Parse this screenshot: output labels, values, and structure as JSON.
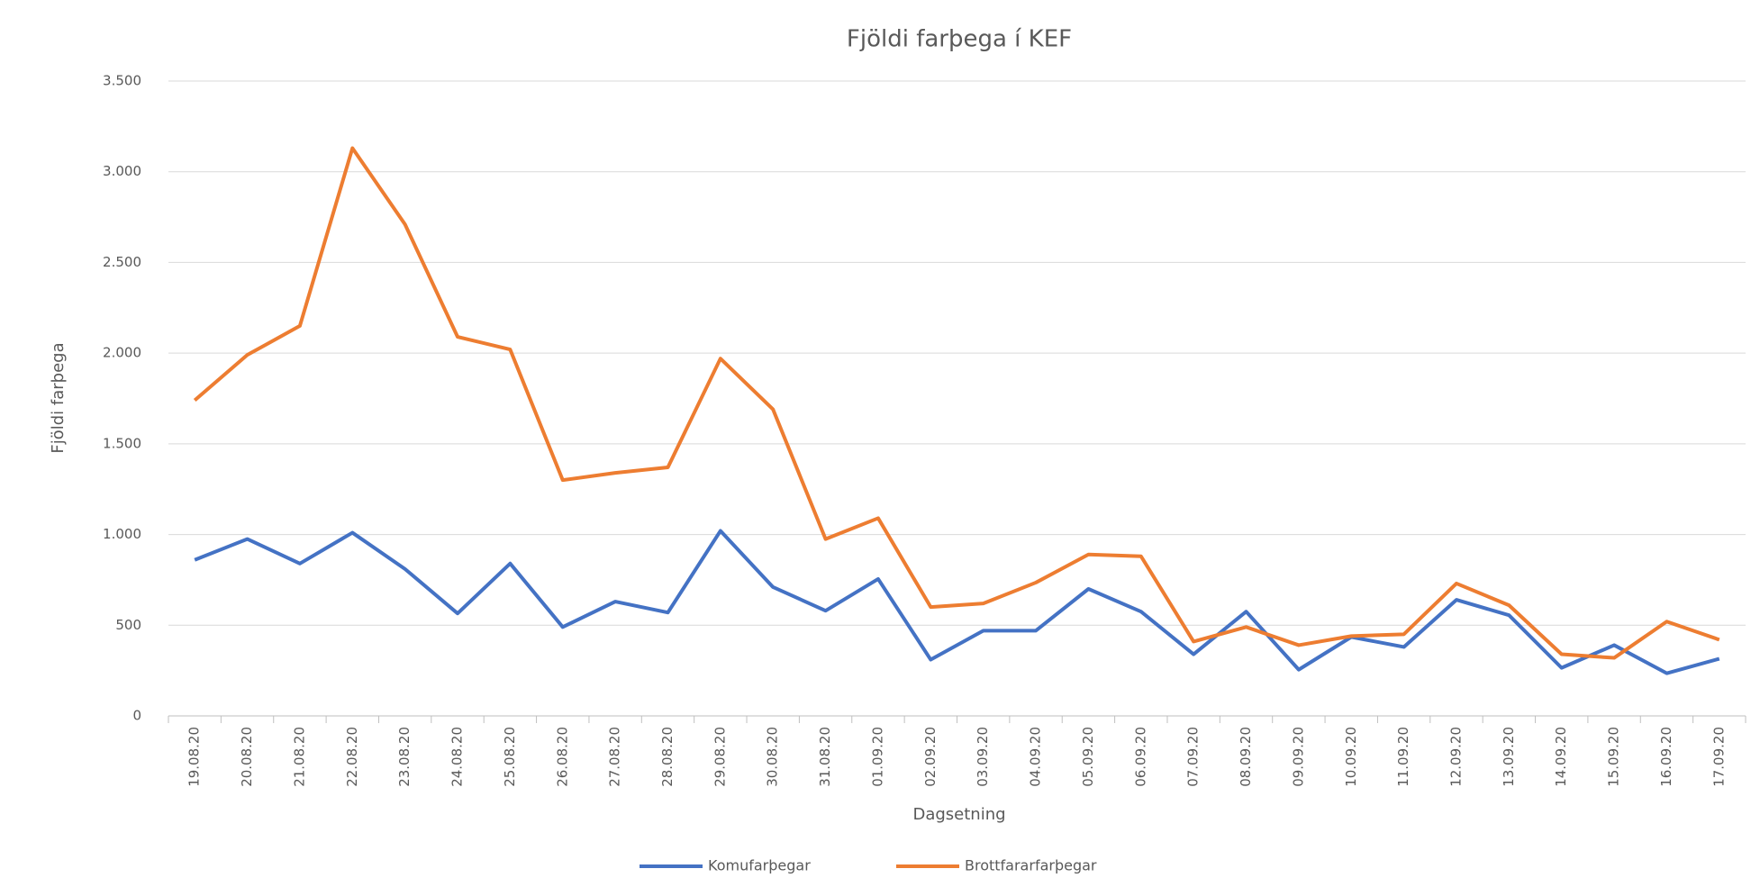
{
  "chart_data": {
    "type": "line",
    "title": "Fjöldi farþega í KEF",
    "x_label": "Dagsetning",
    "y_label": "Fjöldi farþega",
    "categories": [
      "19.08.20",
      "20.08.20",
      "21.08.20",
      "22.08.20",
      "23.08.20",
      "24.08.20",
      "25.08.20",
      "26.08.20",
      "27.08.20",
      "28.08.20",
      "29.08.20",
      "30.08.20",
      "31.08.20",
      "01.09.20",
      "02.09.20",
      "03.09.20",
      "04.09.20",
      "05.09.20",
      "06.09.20",
      "07.09.20",
      "08.09.20",
      "09.09.20",
      "10.09.20",
      "11.09.20",
      "12.09.20",
      "13.09.20",
      "14.09.20",
      "15.09.20",
      "16.09.20",
      "17.09.20"
    ],
    "series": [
      {
        "name": "Komufarþegar",
        "color": "#4472c4",
        "values": [
          860,
          975,
          840,
          1010,
          810,
          565,
          840,
          490,
          630,
          570,
          1020,
          710,
          580,
          755,
          310,
          470,
          470,
          700,
          575,
          340,
          575,
          255,
          435,
          380,
          640,
          555,
          265,
          390,
          235,
          315
        ]
      },
      {
        "name": "Brottfararfarþegar",
        "color": "#ed7d31",
        "values": [
          1740,
          1990,
          2150,
          3130,
          2710,
          2090,
          2020,
          1300,
          1340,
          1370,
          1970,
          1690,
          975,
          1090,
          600,
          620,
          735,
          890,
          880,
          410,
          490,
          390,
          440,
          450,
          730,
          610,
          340,
          320,
          520,
          420
        ]
      }
    ],
    "ylim": [
      0,
      3500
    ],
    "yticks": [
      0,
      {
        "value": 500,
        "label": "500"
      },
      {
        "value": 1000,
        "label": "1.000"
      },
      {
        "value": 1500,
        "label": "1.500"
      },
      {
        "value": 2000,
        "label": "2.000"
      },
      {
        "value": 2500,
        "label": "2.500"
      },
      {
        "value": 3000,
        "label": "3.000"
      },
      {
        "value": 3500,
        "label": "3.500"
      }
    ],
    "grid": true,
    "legend": "bottom"
  }
}
